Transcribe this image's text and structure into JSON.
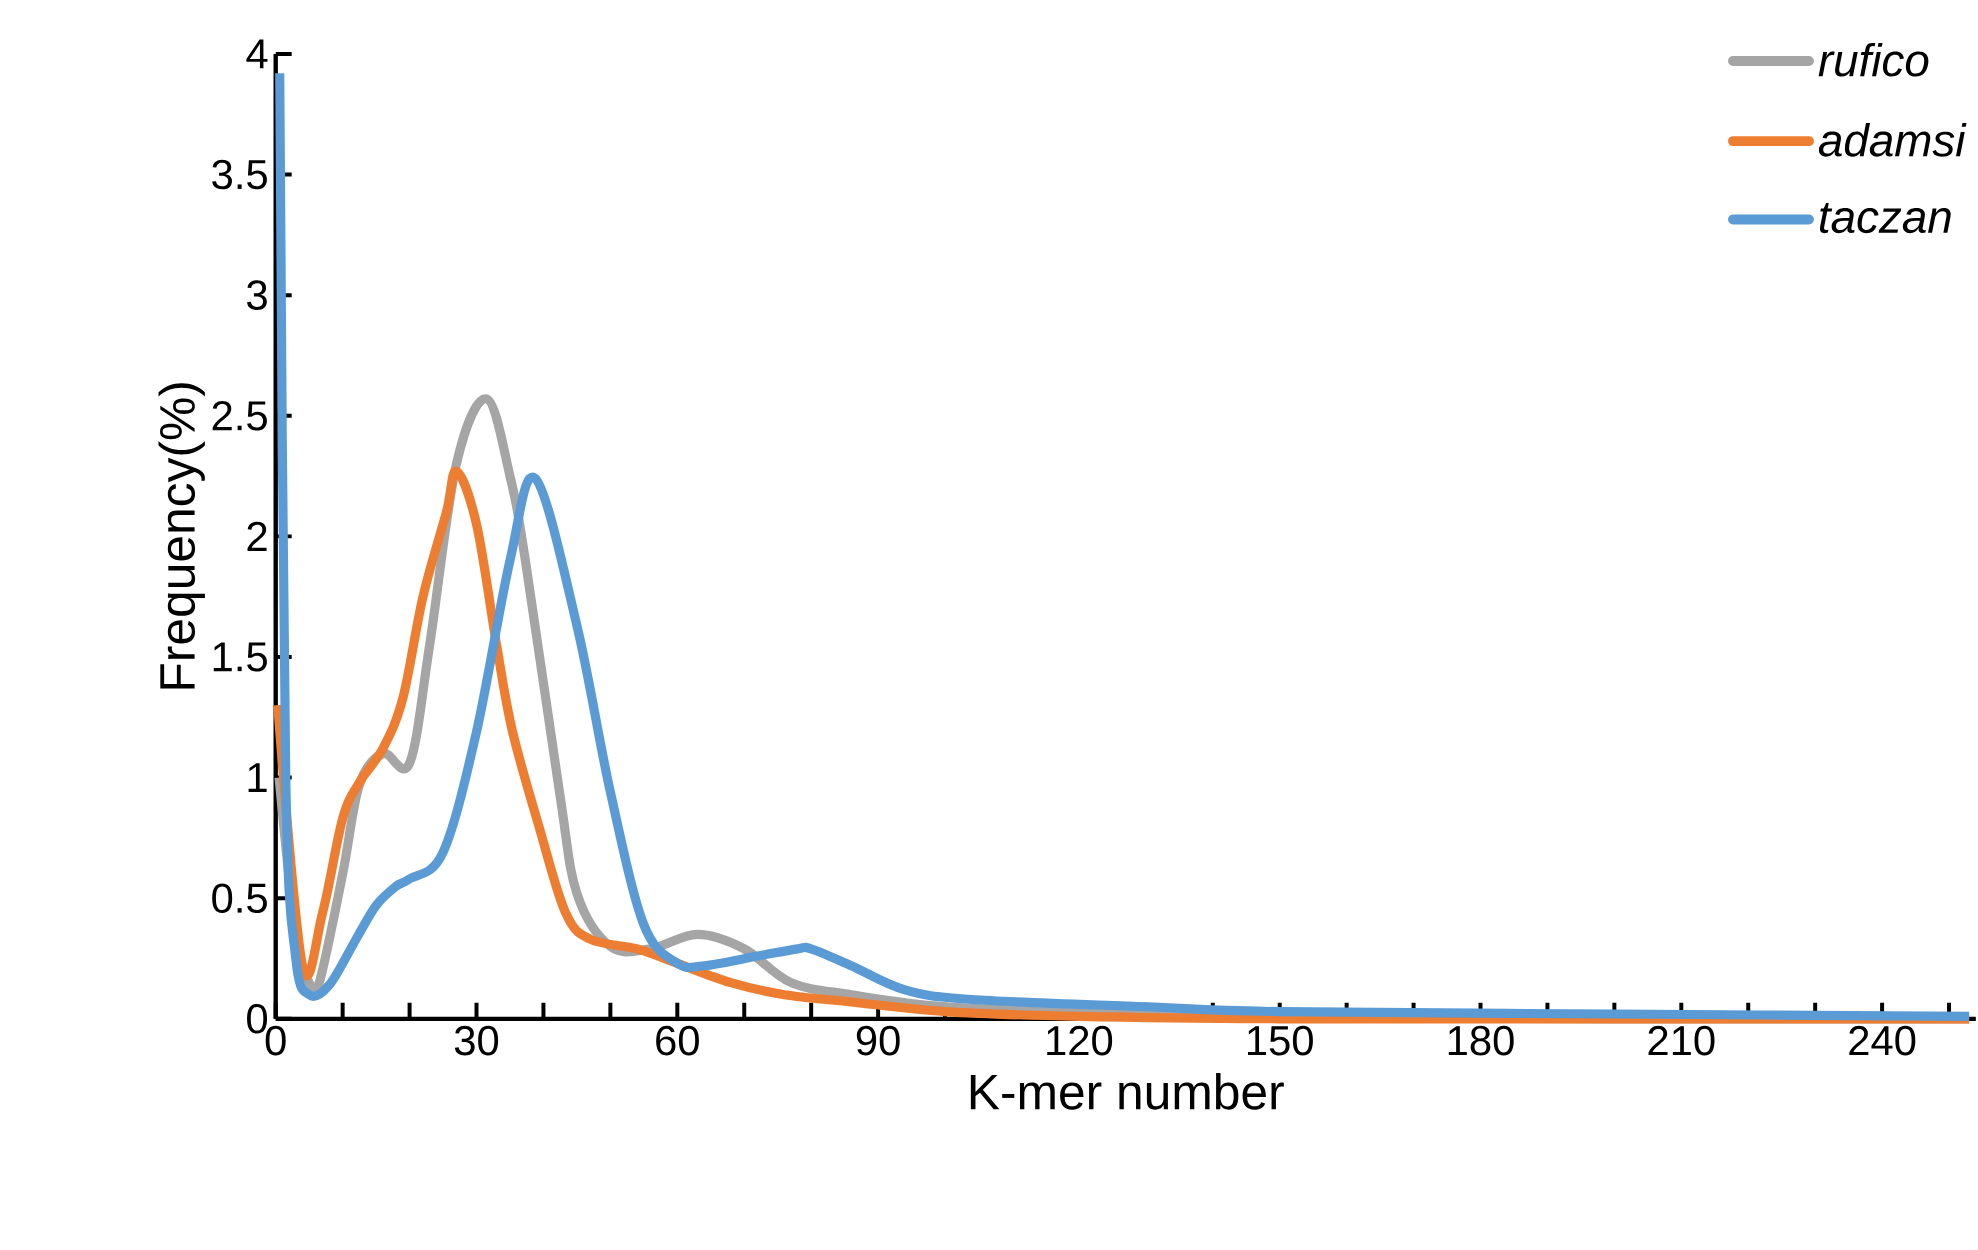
{
  "chart_data": {
    "type": "line",
    "xlabel": "K-mer number",
    "ylabel": "Frequency(%)",
    "xlim": [
      0,
      254
    ],
    "ylim": [
      0,
      4
    ],
    "xticks": [
      0,
      {
        "value": 10,
        "label": null
      },
      {
        "value": 20,
        "label": null
      },
      30,
      {
        "value": 40,
        "label": null
      },
      {
        "value": 50,
        "label": null
      },
      60,
      {
        "value": 70,
        "label": null
      },
      {
        "value": 80,
        "label": null
      },
      90,
      {
        "value": 100,
        "label": null
      },
      {
        "value": 110,
        "label": null
      },
      120,
      {
        "value": 130,
        "label": null
      },
      {
        "value": 140,
        "label": null
      },
      150,
      {
        "value": 160,
        "label": null
      },
      {
        "value": 170,
        "label": null
      },
      180,
      {
        "value": 190,
        "label": null
      },
      {
        "value": 200,
        "label": null
      },
      210,
      {
        "value": 220,
        "label": null
      },
      {
        "value": 230,
        "label": null
      },
      240,
      {
        "value": 250,
        "label": null
      }
    ],
    "yticks": [
      0,
      0.5,
      1,
      1.5,
      2,
      2.5,
      3,
      3.5,
      4
    ],
    "grid": false,
    "legend": "top right",
    "marker": "none",
    "line_style": "solid",
    "series": [
      {
        "name": "rufico",
        "color": "#a5a5a5",
        "x": [
          0.5,
          3,
          5,
          6.5,
          10,
          12.5,
          16,
          20,
          23,
          27,
          31.5,
          35,
          37.3,
          42.4,
          45,
          50,
          56,
          63,
          70,
          77,
          86,
          100,
          120,
          150,
          200,
          253
        ],
        "values": [
          1.0,
          0.35,
          0.15,
          0.15,
          0.6,
          0.97,
          1.1,
          1.06,
          1.55,
          2.3,
          2.57,
          2.25,
          1.9,
          0.94,
          0.52,
          0.3,
          0.29,
          0.35,
          0.29,
          0.15,
          0.1,
          0.05,
          0.03,
          0.01,
          0.0,
          0.0
        ]
      },
      {
        "name": "adamsi",
        "color": "#ed7d31",
        "x": [
          0.3,
          4,
          7,
          10,
          12.5,
          16,
          19,
          22,
          25.5,
          27,
          30,
          33,
          35.3,
          39.3,
          43.3,
          47,
          54,
          60,
          68,
          76,
          86,
          100,
          120,
          150,
          200,
          253
        ],
        "values": [
          1.3,
          0.22,
          0.44,
          0.83,
          0.98,
          1.12,
          1.33,
          1.75,
          2.1,
          2.27,
          2.05,
          1.55,
          1.2,
          0.8,
          0.44,
          0.33,
          0.29,
          0.23,
          0.15,
          0.1,
          0.07,
          0.03,
          0.01,
          0.0,
          0.0,
          0.0
        ]
      },
      {
        "name": "taczan",
        "color": "#5b9bd5",
        "x": [
          0.6,
          1.5,
          3,
          5,
          8,
          12,
          15,
          18,
          20,
          25,
          30,
          35,
          38.8,
          45,
          50,
          55,
          60,
          64,
          72,
          78,
          80,
          86,
          94,
          104,
          130,
          150,
          200,
          253
        ],
        "values": [
          3.92,
          1.0,
          0.25,
          0.1,
          0.14,
          0.33,
          0.47,
          0.55,
          0.58,
          0.69,
          1.19,
          1.9,
          2.24,
          1.63,
          0.94,
          0.39,
          0.23,
          0.22,
          0.26,
          0.29,
          0.29,
          0.22,
          0.12,
          0.08,
          0.05,
          0.03,
          0.02,
          0.01
        ]
      }
    ]
  }
}
